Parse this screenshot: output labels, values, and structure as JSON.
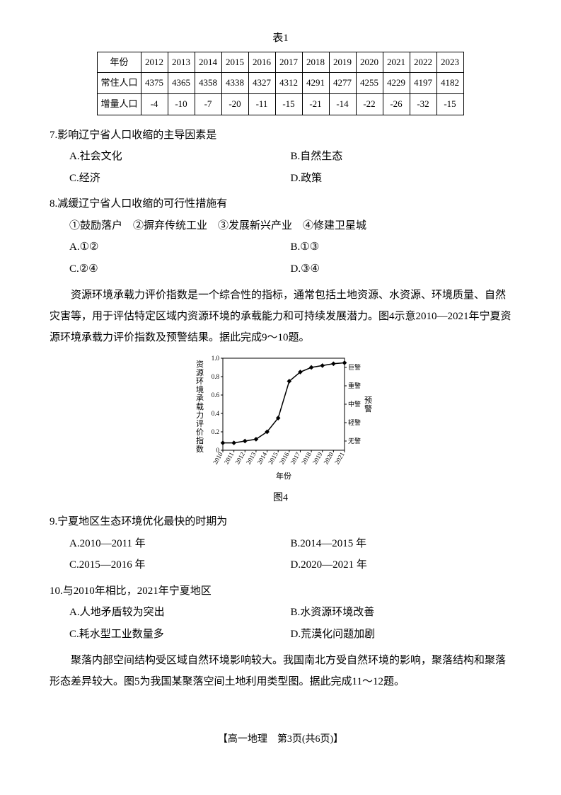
{
  "table1": {
    "title": "表1",
    "rows": [
      {
        "label": "年份",
        "cells": [
          "2012",
          "2013",
          "2014",
          "2015",
          "2016",
          "2017",
          "2018",
          "2019",
          "2020",
          "2021",
          "2022",
          "2023"
        ]
      },
      {
        "label": "常住人口",
        "cells": [
          "4375",
          "4365",
          "4358",
          "4338",
          "4327",
          "4312",
          "4291",
          "4277",
          "4255",
          "4229",
          "4197",
          "4182"
        ]
      },
      {
        "label": "增量人口",
        "cells": [
          "-4",
          "-10",
          "-7",
          "-20",
          "-11",
          "-15",
          "-21",
          "-14",
          "-22",
          "-26",
          "-32",
          "-15"
        ]
      }
    ]
  },
  "q7": {
    "stem": "7.影响辽宁省人口收缩的主导因素是",
    "opts": [
      "A.社会文化",
      "B.自然生态",
      "C.经济",
      "D.政策"
    ]
  },
  "q8": {
    "stem": "8.减缓辽宁省人口收缩的可行性措施有",
    "statements": "①鼓励落户　②摒弃传统工业　③发展新兴产业　④修建卫星城",
    "opts": [
      "A.①②",
      "B.①③",
      "C.②④",
      "D.③④"
    ]
  },
  "passage2": "资源环境承载力评价指数是一个综合性的指标，通常包括土地资源、水资源、环境质量、自然灾害等，用于评估特定区域内资源环境的承载能力和可持续发展潜力。图4示意2010—2021年宁夏资源环境承载力评价指数及预警结果。据此完成9～10题。",
  "chart": {
    "type": "line",
    "caption": "图4",
    "x_label": "年份",
    "y_label": "资源环境承载力评价指数",
    "y2_label": "预警",
    "x_ticks": [
      "2010",
      "2011",
      "2012",
      "2013",
      "2014",
      "2015",
      "2016",
      "2017",
      "2018",
      "2019",
      "2020",
      "2021"
    ],
    "y_ticks": [
      0,
      0.2,
      0.4,
      0.6,
      0.8,
      1.0
    ],
    "y2_ticks": [
      "巨警",
      "重警",
      "中警",
      "轻警",
      "无警"
    ],
    "ylim": [
      0,
      1.0
    ],
    "values": [
      0.08,
      0.08,
      0.1,
      0.12,
      0.2,
      0.35,
      0.75,
      0.85,
      0.9,
      0.92,
      0.94,
      0.95
    ],
    "line_color": "#000000",
    "marker": "diamond",
    "marker_size": 4,
    "line_width": 1.5,
    "background_color": "#ffffff",
    "axis_color": "#000000",
    "tick_fontsize": 9,
    "label_fontsize": 11
  },
  "q9": {
    "stem": "9.宁夏地区生态环境优化最快的时期为",
    "opts": [
      "A.2010—2011 年",
      "B.2014—2015 年",
      "C.2015—2016 年",
      "D.2020—2021 年"
    ]
  },
  "q10": {
    "stem": "10.与2010年相比，2021年宁夏地区",
    "opts": [
      "A.人地矛盾较为突出",
      "B.水资源环境改善",
      "C.耗水型工业数量多",
      "D.荒漠化问题加剧"
    ]
  },
  "passage3": "聚落内部空间结构受区域自然环境影响较大。我国南北方受自然环境的影响，聚落结构和聚落形态差异较大。图5为我国某聚落空间土地利用类型图。据此完成11～12题。",
  "footer": "【高一地理　第3页(共6页)】"
}
